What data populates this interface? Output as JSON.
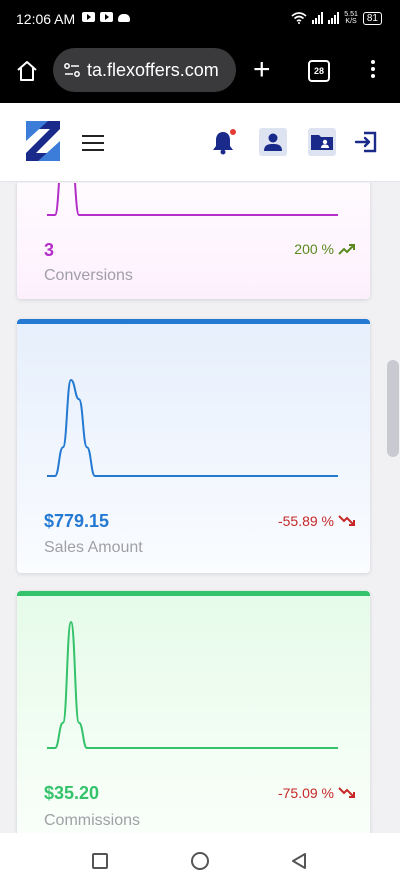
{
  "status_bar": {
    "time": "12:06 AM",
    "network_speed_value": "5.51",
    "network_speed_unit": "K/S",
    "battery": "81"
  },
  "browser": {
    "url": "ta.flexoffers.com",
    "tab_count": "28"
  },
  "cards": [
    {
      "value": "3",
      "label": "Conversions",
      "change": "200 %",
      "trend": "up",
      "accent_color": "#b32fc7",
      "change_color": "#5a8a1e",
      "sparkline": [
        0,
        0,
        1,
        1,
        0,
        0,
        0,
        0,
        0,
        0,
        0,
        0,
        0,
        0,
        0,
        0
      ]
    },
    {
      "value": "$779.15",
      "label": "Sales Amount",
      "change": "-55.89 %",
      "trend": "down",
      "accent_color": "#2479d2",
      "change_color": "#c62828",
      "sparkline": [
        0,
        0,
        0.3,
        1,
        0.8,
        0.3,
        0,
        0,
        0,
        0,
        0,
        0,
        0,
        0,
        0,
        0
      ]
    },
    {
      "value": "$35.20",
      "label": "Commissions",
      "change": "-75.09 %",
      "trend": "down",
      "accent_color": "#34c26a",
      "change_color": "#c62828",
      "sparkline": [
        0,
        0,
        0.2,
        1,
        0.2,
        0,
        0,
        0,
        0,
        0,
        0,
        0,
        0,
        0,
        0,
        0
      ]
    }
  ],
  "colors": {
    "brand_blue": "#1a2a8a",
    "header_icon_bg": "#dde3f1",
    "notification_dot": "#e53935"
  }
}
